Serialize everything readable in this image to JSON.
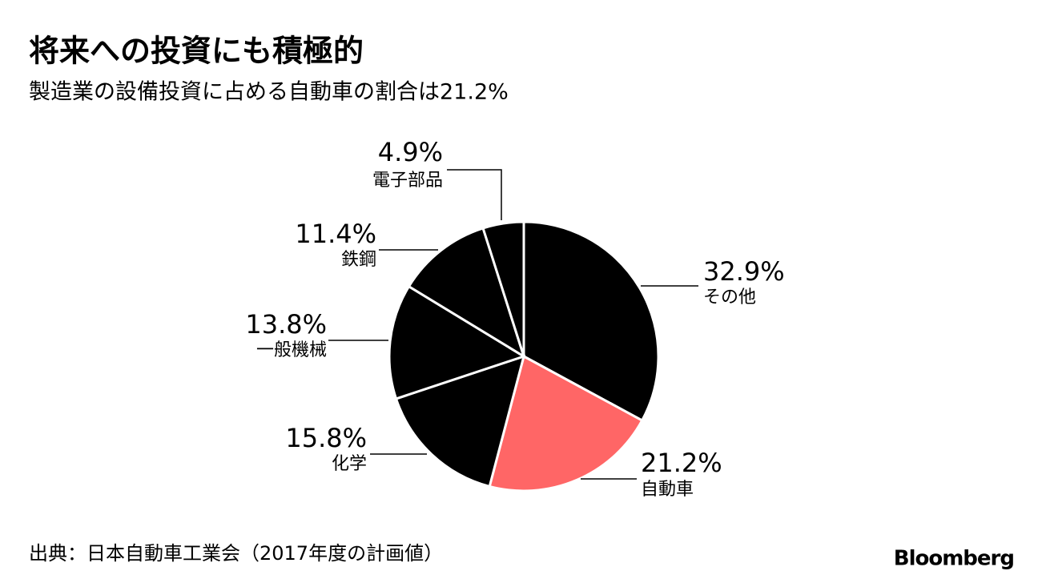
{
  "chart_data": {
    "type": "pie",
    "title": "将来への投資にも積極的",
    "subtitle": "製造業の設備投資に占める自動車の割合は21.2%",
    "categories": [
      "その他",
      "自動車",
      "化学",
      "一般機械",
      "鉄鋼",
      "電子部品"
    ],
    "values": [
      32.9,
      21.2,
      15.8,
      13.8,
      11.4,
      4.9
    ],
    "value_labels": [
      "32.9%",
      "21.2%",
      "15.8%",
      "13.8%",
      "11.4%",
      "4.9%"
    ],
    "colors": [
      "#000000",
      "#ff6666",
      "#000000",
      "#000000",
      "#000000",
      "#000000"
    ],
    "source": "出典：日本自動車工業会（2017年度の計画値）",
    "brand": "Bloomberg"
  }
}
